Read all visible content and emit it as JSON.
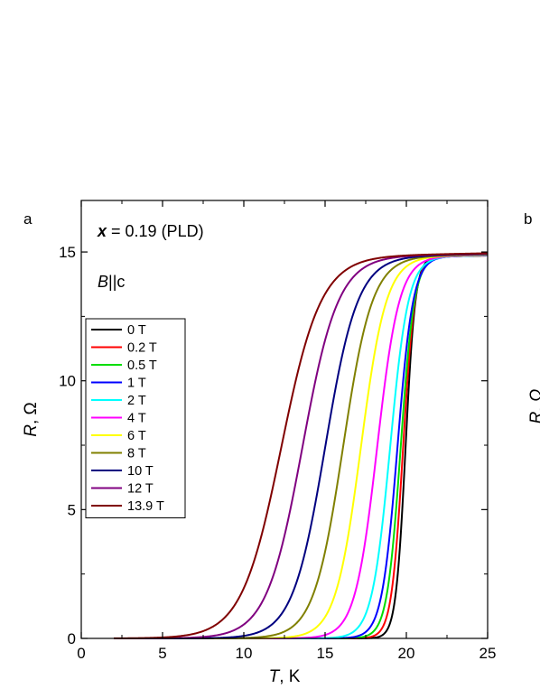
{
  "chart_data": {
    "type": "line",
    "panel_label": "a",
    "next_panel_label": "b",
    "next_panel_ylabel_fragment": "R, Ω",
    "annotation": {
      "var": "x",
      "rest": " = 0.19 (PLD)"
    },
    "field_orientation": {
      "var": "B",
      "rest": "||c"
    },
    "xlabel": {
      "var": "T",
      "rest": ", K"
    },
    "ylabel": {
      "var": "R",
      "rest": ", Ω"
    },
    "xlim": [
      0,
      25
    ],
    "ylim": [
      0,
      17
    ],
    "xticks": [
      0,
      5,
      10,
      15,
      20,
      25
    ],
    "xtick_labels": [
      "0",
      "5",
      "10",
      "15",
      "20",
      "25"
    ],
    "yticks": [
      0,
      5,
      10,
      15
    ],
    "ytick_labels": [
      "0",
      "5",
      "10",
      "15"
    ],
    "grid": false,
    "legend_position": "middle-left",
    "series": [
      {
        "name": "0 T",
        "color": "#000000",
        "tc": 19.95,
        "w": 0.3
      },
      {
        "name": "0.2 T",
        "color": "#ff0000",
        "tc": 19.8,
        "w": 0.36
      },
      {
        "name": "0.5 T",
        "color": "#00dd00",
        "tc": 19.65,
        "w": 0.42
      },
      {
        "name": "1 T",
        "color": "#0000ff",
        "tc": 19.45,
        "w": 0.48
      },
      {
        "name": "2 T",
        "color": "#00ffff",
        "tc": 19.0,
        "w": 0.56
      },
      {
        "name": "4 T",
        "color": "#ff00ff",
        "tc": 18.2,
        "w": 0.68
      },
      {
        "name": "6 T",
        "color": "#ffff00",
        "tc": 17.2,
        "w": 0.78
      },
      {
        "name": "8 T",
        "color": "#808000",
        "tc": 16.1,
        "w": 0.9
      },
      {
        "name": "10 T",
        "color": "#000080",
        "tc": 15.0,
        "w": 1.0
      },
      {
        "name": "12 T",
        "color": "#800080",
        "tc": 13.6,
        "w": 1.1
      },
      {
        "name": "13.9 T",
        "color": "#800000",
        "tc": 12.3,
        "w": 1.22
      }
    ],
    "rn": 14.8
  }
}
